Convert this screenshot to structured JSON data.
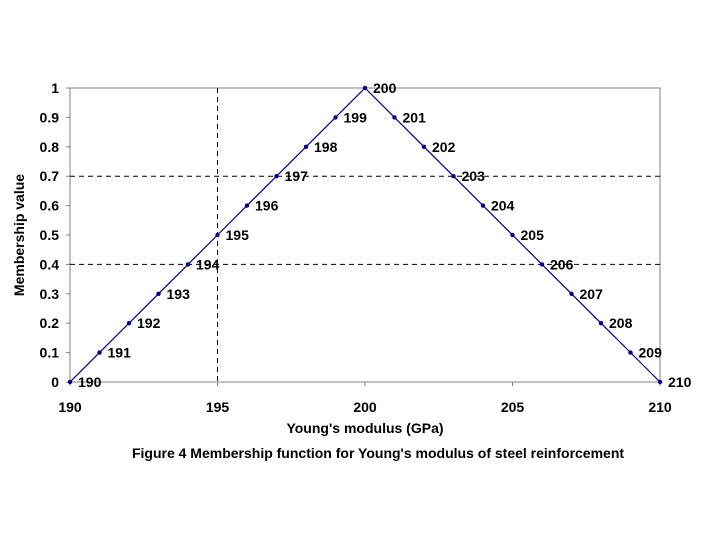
{
  "chart_data": {
    "type": "line",
    "caption": "Figure 4 Membership function for Young's modulus of steel reinforcement",
    "xlabel": "Young's modulus (GPa)",
    "ylabel": "Membership value",
    "xlim": [
      190,
      210
    ],
    "ylim": [
      0,
      1
    ],
    "x_ticks": [
      "190",
      "195",
      "200",
      "205",
      "210"
    ],
    "x_tick_values": [
      190,
      195,
      200,
      205,
      210
    ],
    "y_ticks": [
      "0",
      "0.1",
      "0.2",
      "0.3",
      "0.4",
      "0.5",
      "0.6",
      "0.7",
      "0.8",
      "0.9",
      "1"
    ],
    "y_tick_values": [
      0,
      0.1,
      0.2,
      0.3,
      0.4,
      0.5,
      0.6,
      0.7,
      0.8,
      0.9,
      1
    ],
    "grid": "dashed reference lines at x=195 and y=0.4, 0.7",
    "reference_lines": {
      "x": [
        195
      ],
      "y": [
        0.4,
        0.7
      ]
    },
    "series": [
      {
        "x": [
          190,
          191,
          192,
          193,
          194,
          195,
          196,
          197,
          198,
          199,
          200,
          201,
          202,
          203,
          204,
          205,
          206,
          207,
          208,
          209,
          210
        ],
        "y": [
          0,
          0.1,
          0.2,
          0.3,
          0.4,
          0.5,
          0.6,
          0.7,
          0.8,
          0.9,
          1,
          0.9,
          0.8,
          0.7,
          0.6,
          0.5,
          0.4,
          0.3,
          0.2,
          0.1,
          0
        ],
        "point_labels": [
          "190",
          "191",
          "192",
          "193",
          "194",
          "195",
          "196",
          "197",
          "198",
          "199",
          "200",
          "201",
          "202",
          "203",
          "204",
          "205",
          "206",
          "207",
          "208",
          "209",
          "210"
        ],
        "color": "#000080"
      }
    ]
  }
}
